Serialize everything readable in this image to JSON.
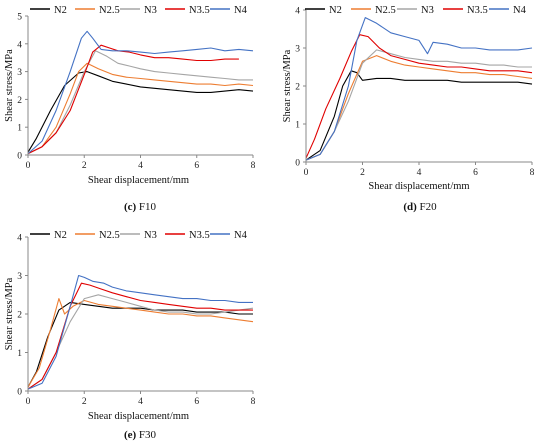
{
  "colors": {
    "N2": "#000000",
    "N2.5": "#ED7D31",
    "N3": "#A5A5A5",
    "N3.5": "#E00000",
    "N4": "#4472C4"
  },
  "chart_data": [
    {
      "type": "line",
      "caption_letter": "(c)",
      "caption_text": " F10",
      "xlabel": "Shear displacement/mm",
      "ylabel": "Shear stress/MPa",
      "xlim": [
        0,
        8
      ],
      "ylim": [
        0,
        5
      ],
      "xticks": [
        0,
        2,
        4,
        6,
        8
      ],
      "yticks": [
        0,
        1,
        2,
        3,
        4,
        5
      ],
      "grid": false,
      "legend": "top",
      "series": [
        {
          "name": "N2",
          "x": [
            0,
            0.3,
            0.8,
            1.3,
            1.8,
            2.1,
            2.5,
            3,
            3.5,
            4,
            4.5,
            5,
            5.5,
            6,
            6.5,
            7,
            7.5,
            8
          ],
          "y": [
            0.1,
            0.6,
            1.6,
            2.5,
            2.95,
            3.0,
            2.85,
            2.65,
            2.55,
            2.45,
            2.4,
            2.35,
            2.3,
            2.25,
            2.25,
            2.3,
            2.35,
            2.3
          ]
        },
        {
          "name": "N2.5",
          "x": [
            0,
            0.5,
            1,
            1.5,
            1.8,
            2.1,
            2.5,
            3,
            3.5,
            4,
            4.5,
            5,
            5.5,
            6,
            6.5,
            7,
            7.5,
            8
          ],
          "y": [
            0.05,
            0.3,
            1.0,
            2.2,
            3.0,
            3.3,
            3.1,
            2.9,
            2.8,
            2.75,
            2.7,
            2.65,
            2.6,
            2.55,
            2.55,
            2.5,
            2.55,
            2.5
          ]
        },
        {
          "name": "N3",
          "x": [
            0,
            0.5,
            1,
            1.5,
            2,
            2.4,
            2.8,
            3.2,
            3.6,
            4,
            4.5,
            5,
            5.5,
            6,
            6.5,
            7,
            7.5,
            8
          ],
          "y": [
            0.05,
            0.3,
            0.8,
            1.8,
            3.0,
            3.75,
            3.55,
            3.3,
            3.2,
            3.1,
            3.0,
            2.95,
            2.9,
            2.85,
            2.8,
            2.75,
            2.7,
            2.7
          ]
        },
        {
          "name": "N3.5",
          "x": [
            0,
            0.5,
            1,
            1.5,
            2,
            2.3,
            2.6,
            2.9,
            3.2,
            3.6,
            4,
            4.5,
            5,
            5.5,
            6,
            6.5,
            7,
            7.5
          ],
          "y": [
            0.05,
            0.3,
            0.8,
            1.6,
            2.9,
            3.7,
            3.95,
            3.85,
            3.75,
            3.7,
            3.6,
            3.5,
            3.5,
            3.45,
            3.4,
            3.4,
            3.45,
            3.45
          ]
        },
        {
          "name": "N4",
          "x": [
            0,
            0.5,
            1,
            1.5,
            1.9,
            2.1,
            2.3,
            2.6,
            3,
            3.5,
            4,
            4.5,
            5,
            5.5,
            6,
            6.5,
            7,
            7.5,
            8
          ],
          "y": [
            0.05,
            0.5,
            1.6,
            3.0,
            4.2,
            4.45,
            4.2,
            3.8,
            3.75,
            3.75,
            3.7,
            3.65,
            3.7,
            3.75,
            3.8,
            3.85,
            3.75,
            3.8,
            3.75
          ]
        }
      ]
    },
    {
      "type": "line",
      "caption_letter": "(d)",
      "caption_text": " F20",
      "xlabel": "Shear displacement/mm",
      "ylabel": "Shear stress/MPa",
      "xlim": [
        0,
        8
      ],
      "ylim": [
        0,
        4
      ],
      "xticks": [
        0,
        2,
        4,
        6,
        8
      ],
      "yticks": [
        0,
        1,
        2,
        3,
        4
      ],
      "grid": false,
      "legend": "top",
      "series": [
        {
          "name": "N2",
          "x": [
            0,
            0.5,
            1,
            1.3,
            1.6,
            1.8,
            2,
            2.5,
            3,
            3.5,
            4,
            4.5,
            5,
            5.5,
            6,
            6.5,
            7,
            7.5,
            8
          ],
          "y": [
            0.05,
            0.3,
            1.2,
            2.0,
            2.4,
            2.35,
            2.15,
            2.2,
            2.2,
            2.15,
            2.15,
            2.15,
            2.15,
            2.1,
            2.1,
            2.1,
            2.1,
            2.1,
            2.05
          ]
        },
        {
          "name": "N2.5",
          "x": [
            0,
            0.5,
            1,
            1.5,
            2,
            2.5,
            3,
            3.5,
            4,
            4.5,
            5,
            5.5,
            6,
            6.5,
            7,
            7.5,
            8
          ],
          "y": [
            0.05,
            0.2,
            0.8,
            1.8,
            2.65,
            2.8,
            2.65,
            2.55,
            2.5,
            2.45,
            2.4,
            2.35,
            2.35,
            2.3,
            2.3,
            2.25,
            2.2
          ]
        },
        {
          "name": "N3",
          "x": [
            0,
            0.5,
            1,
            1.5,
            2,
            2.5,
            3,
            3.5,
            4,
            4.5,
            5,
            5.5,
            6,
            6.5,
            7,
            7.5,
            8
          ],
          "y": [
            0.05,
            0.2,
            0.8,
            1.6,
            2.6,
            2.95,
            2.85,
            2.75,
            2.7,
            2.65,
            2.65,
            2.6,
            2.6,
            2.55,
            2.55,
            2.5,
            2.5
          ]
        },
        {
          "name": "N3.5",
          "x": [
            0,
            0.3,
            0.7,
            1.2,
            1.6,
            1.9,
            2.2,
            2.6,
            3,
            3.5,
            4,
            4.5,
            5,
            5.5,
            6,
            6.5,
            7,
            7.5,
            8
          ],
          "y": [
            0.1,
            0.6,
            1.4,
            2.2,
            2.9,
            3.35,
            3.3,
            3.0,
            2.8,
            2.7,
            2.6,
            2.55,
            2.5,
            2.5,
            2.45,
            2.4,
            2.4,
            2.4,
            2.35
          ]
        },
        {
          "name": "N4",
          "x": [
            0,
            0.5,
            1,
            1.5,
            1.8,
            2.1,
            2.5,
            3,
            3.5,
            4,
            4.3,
            4.5,
            5,
            5.5,
            6,
            6.5,
            7,
            7.5,
            8
          ],
          "y": [
            0.05,
            0.2,
            0.8,
            2.0,
            3.2,
            3.8,
            3.65,
            3.4,
            3.3,
            3.2,
            2.85,
            3.15,
            3.1,
            3.0,
            3.0,
            2.95,
            2.95,
            2.95,
            3.0
          ]
        }
      ]
    },
    {
      "type": "line",
      "caption_letter": "(e)",
      "caption_text": " F30",
      "xlabel": "Shear displacement/mm",
      "ylabel": "Shear stress/MPa",
      "xlim": [
        0,
        8
      ],
      "ylim": [
        0,
        4
      ],
      "xticks": [
        0,
        2,
        4,
        6,
        8
      ],
      "yticks": [
        0,
        1,
        2,
        3,
        4
      ],
      "grid": false,
      "legend": "top",
      "series": [
        {
          "name": "N2",
          "x": [
            0,
            0.3,
            0.7,
            1.1,
            1.5,
            2,
            2.5,
            3,
            3.5,
            4,
            4.5,
            5,
            5.5,
            6,
            6.5,
            7,
            7.5,
            8
          ],
          "y": [
            0.1,
            0.5,
            1.4,
            2.1,
            2.3,
            2.25,
            2.2,
            2.15,
            2.15,
            2.15,
            2.1,
            2.1,
            2.1,
            2.05,
            2.05,
            2.05,
            2.0,
            2.0
          ]
        },
        {
          "name": "N2.5",
          "x": [
            0,
            0.4,
            0.8,
            1.1,
            1.3,
            1.6,
            2,
            2.5,
            3,
            3.5,
            4,
            4.5,
            5,
            5.5,
            6,
            6.5,
            7,
            7.5,
            8
          ],
          "y": [
            0.1,
            0.6,
            1.6,
            2.4,
            2.0,
            2.2,
            2.35,
            2.25,
            2.2,
            2.15,
            2.1,
            2.05,
            2.0,
            2.0,
            1.95,
            1.95,
            1.9,
            1.85,
            1.8
          ]
        },
        {
          "name": "N3",
          "x": [
            0,
            0.5,
            1,
            1.5,
            2,
            2.5,
            3,
            3.5,
            4,
            4.5,
            5,
            5.5,
            6,
            6.5,
            7,
            7.5,
            8
          ],
          "y": [
            0.05,
            0.3,
            1.0,
            1.8,
            2.4,
            2.5,
            2.4,
            2.3,
            2.2,
            2.1,
            2.05,
            2.05,
            2.0,
            2.0,
            2.05,
            2.1,
            2.15
          ]
        },
        {
          "name": "N3.5",
          "x": [
            0,
            0.5,
            1,
            1.5,
            1.9,
            2.2,
            2.6,
            3,
            3.5,
            4,
            4.5,
            5,
            5.5,
            6,
            6.5,
            7,
            7.5,
            8
          ],
          "y": [
            0.05,
            0.3,
            1.0,
            2.2,
            2.8,
            2.75,
            2.65,
            2.55,
            2.45,
            2.35,
            2.3,
            2.25,
            2.2,
            2.15,
            2.15,
            2.1,
            2.1,
            2.1
          ]
        },
        {
          "name": "N4",
          "x": [
            0,
            0.5,
            1,
            1.5,
            1.8,
            2,
            2.3,
            2.7,
            3,
            3.5,
            4,
            4.5,
            5,
            5.5,
            6,
            6.5,
            7,
            7.5,
            8
          ],
          "y": [
            0.05,
            0.2,
            0.9,
            2.2,
            3.0,
            2.95,
            2.85,
            2.8,
            2.7,
            2.6,
            2.55,
            2.5,
            2.45,
            2.4,
            2.4,
            2.35,
            2.35,
            2.3,
            2.3
          ]
        }
      ]
    }
  ]
}
